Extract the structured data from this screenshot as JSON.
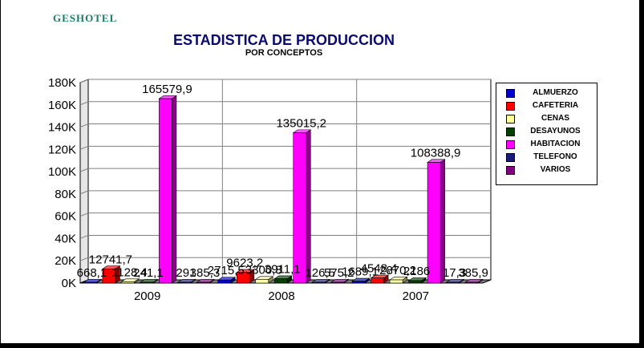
{
  "app": {
    "title": "GESHOTEL"
  },
  "chart_data": {
    "type": "bar",
    "title": "ESTADISTICA DE PRODUCCION",
    "subtitle": "POR CONCEPTOS",
    "categories": [
      "2009",
      "2008",
      "2007"
    ],
    "series": [
      {
        "name": "ALMUERZO",
        "color": "#0000cc",
        "values": [
          668.1,
          2715.5,
          1689.1
        ],
        "labels": [
          "668,1",
          "2715,5",
          "1689,1"
        ]
      },
      {
        "name": "CAFETERIA",
        "color": "#ff0000",
        "values": [
          12741.7,
          9623.2,
          4548.4
        ],
        "labels": [
          "12741,7",
          "9623,2",
          "4548,4"
        ]
      },
      {
        "name": "CENAS",
        "color": "#ffff99",
        "values": [
          1128.4,
          3300.8,
          2870.2
        ],
        "labels": [
          "1128,4",
          "3300,8",
          "2870,2"
        ]
      },
      {
        "name": "DESAYUNOS",
        "color": "#004000",
        "values": [
          241.1,
          3911.1,
          2186
        ],
        "labels": [
          "241,1",
          "3911,1",
          "2186"
        ]
      },
      {
        "name": "HABITACION",
        "color": "#ff00ff",
        "values": [
          165579.9,
          135015.2,
          108388.9
        ],
        "labels": [
          "165579,9",
          "135015,2",
          "108388,9"
        ]
      },
      {
        "name": "TELEFONO",
        "color": "#1a1a7a",
        "values": [
          291,
          126.5,
          17.3
        ],
        "labels": [
          "291",
          "126,5",
          "17,3"
        ]
      },
      {
        "name": "VARIOS",
        "color": "#800080",
        "values": [
          385.3,
          575.2,
          385.9
        ],
        "labels": [
          "385,3",
          "575,2",
          "385,9"
        ]
      }
    ],
    "y_ticks": [
      "0K",
      "20K",
      "40K",
      "60K",
      "80K",
      "100K",
      "120K",
      "140K",
      "160K",
      "180K"
    ],
    "ylim": [
      0,
      180000
    ],
    "grid": true,
    "legend_position": "right"
  }
}
